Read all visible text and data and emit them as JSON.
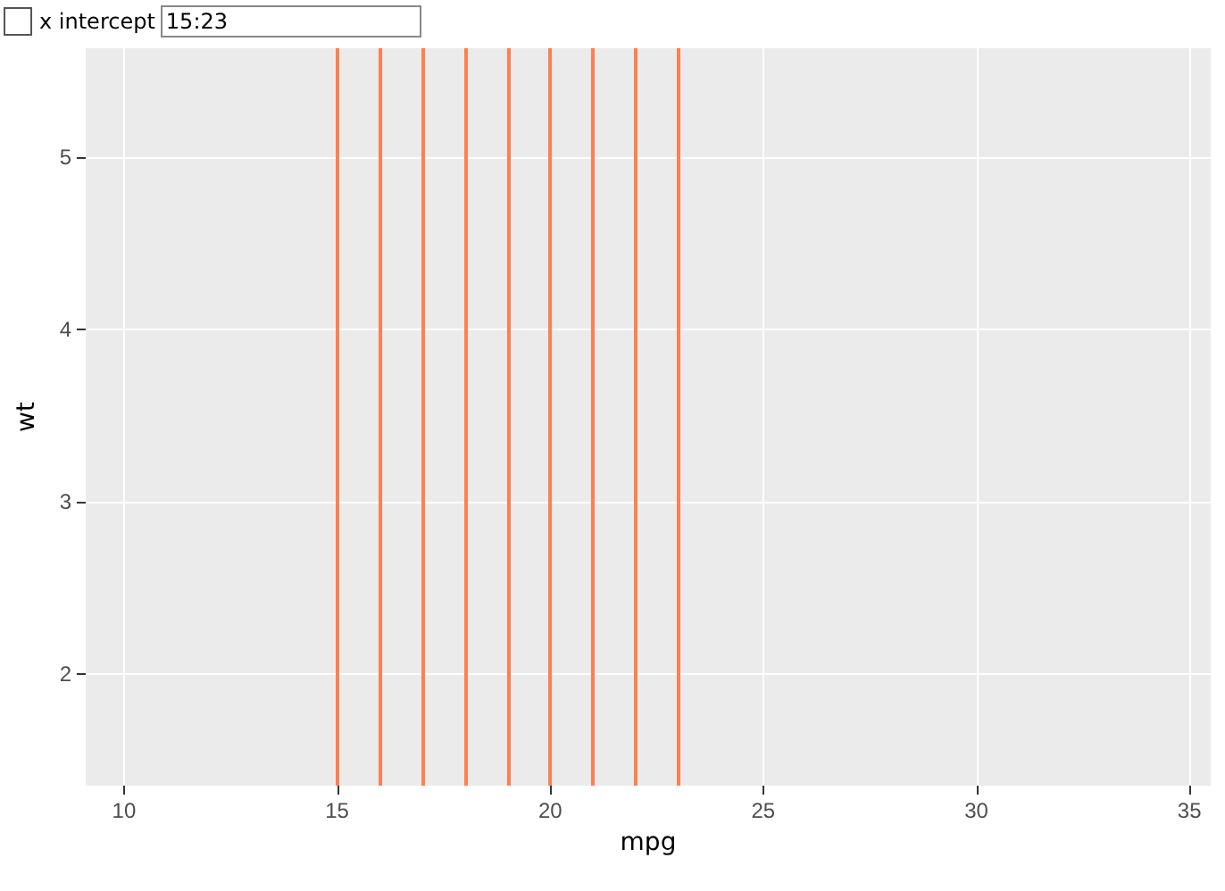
{
  "chart_data": {
    "type": "scatter",
    "xlabel": "mpg",
    "ylabel": "wt",
    "xlim": [
      9.1,
      35.5
    ],
    "ylim": [
      1.35,
      5.63
    ],
    "xticks": [
      10,
      15,
      20,
      25,
      30,
      35
    ],
    "yticks": [
      2,
      3,
      4,
      5
    ],
    "grid": true,
    "ref_lines": [
      {
        "axis": "x",
        "value": 15,
        "color": "#ff7f50"
      },
      {
        "axis": "x",
        "value": 16,
        "color": "#ff7f50"
      },
      {
        "axis": "x",
        "value": 17,
        "color": "#ff7f50"
      },
      {
        "axis": "x",
        "value": 18,
        "color": "#ff7f50"
      },
      {
        "axis": "x",
        "value": 19,
        "color": "#ff7f50"
      },
      {
        "axis": "x",
        "value": 20,
        "color": "#ff7f50"
      },
      {
        "axis": "x",
        "value": 21,
        "color": "#ff7f50"
      },
      {
        "axis": "x",
        "value": 22,
        "color": "#ff7f50"
      },
      {
        "axis": "x",
        "value": 23,
        "color": "#ff7f50"
      }
    ],
    "annotations": [
      "x intercept",
      "15:23"
    ]
  }
}
